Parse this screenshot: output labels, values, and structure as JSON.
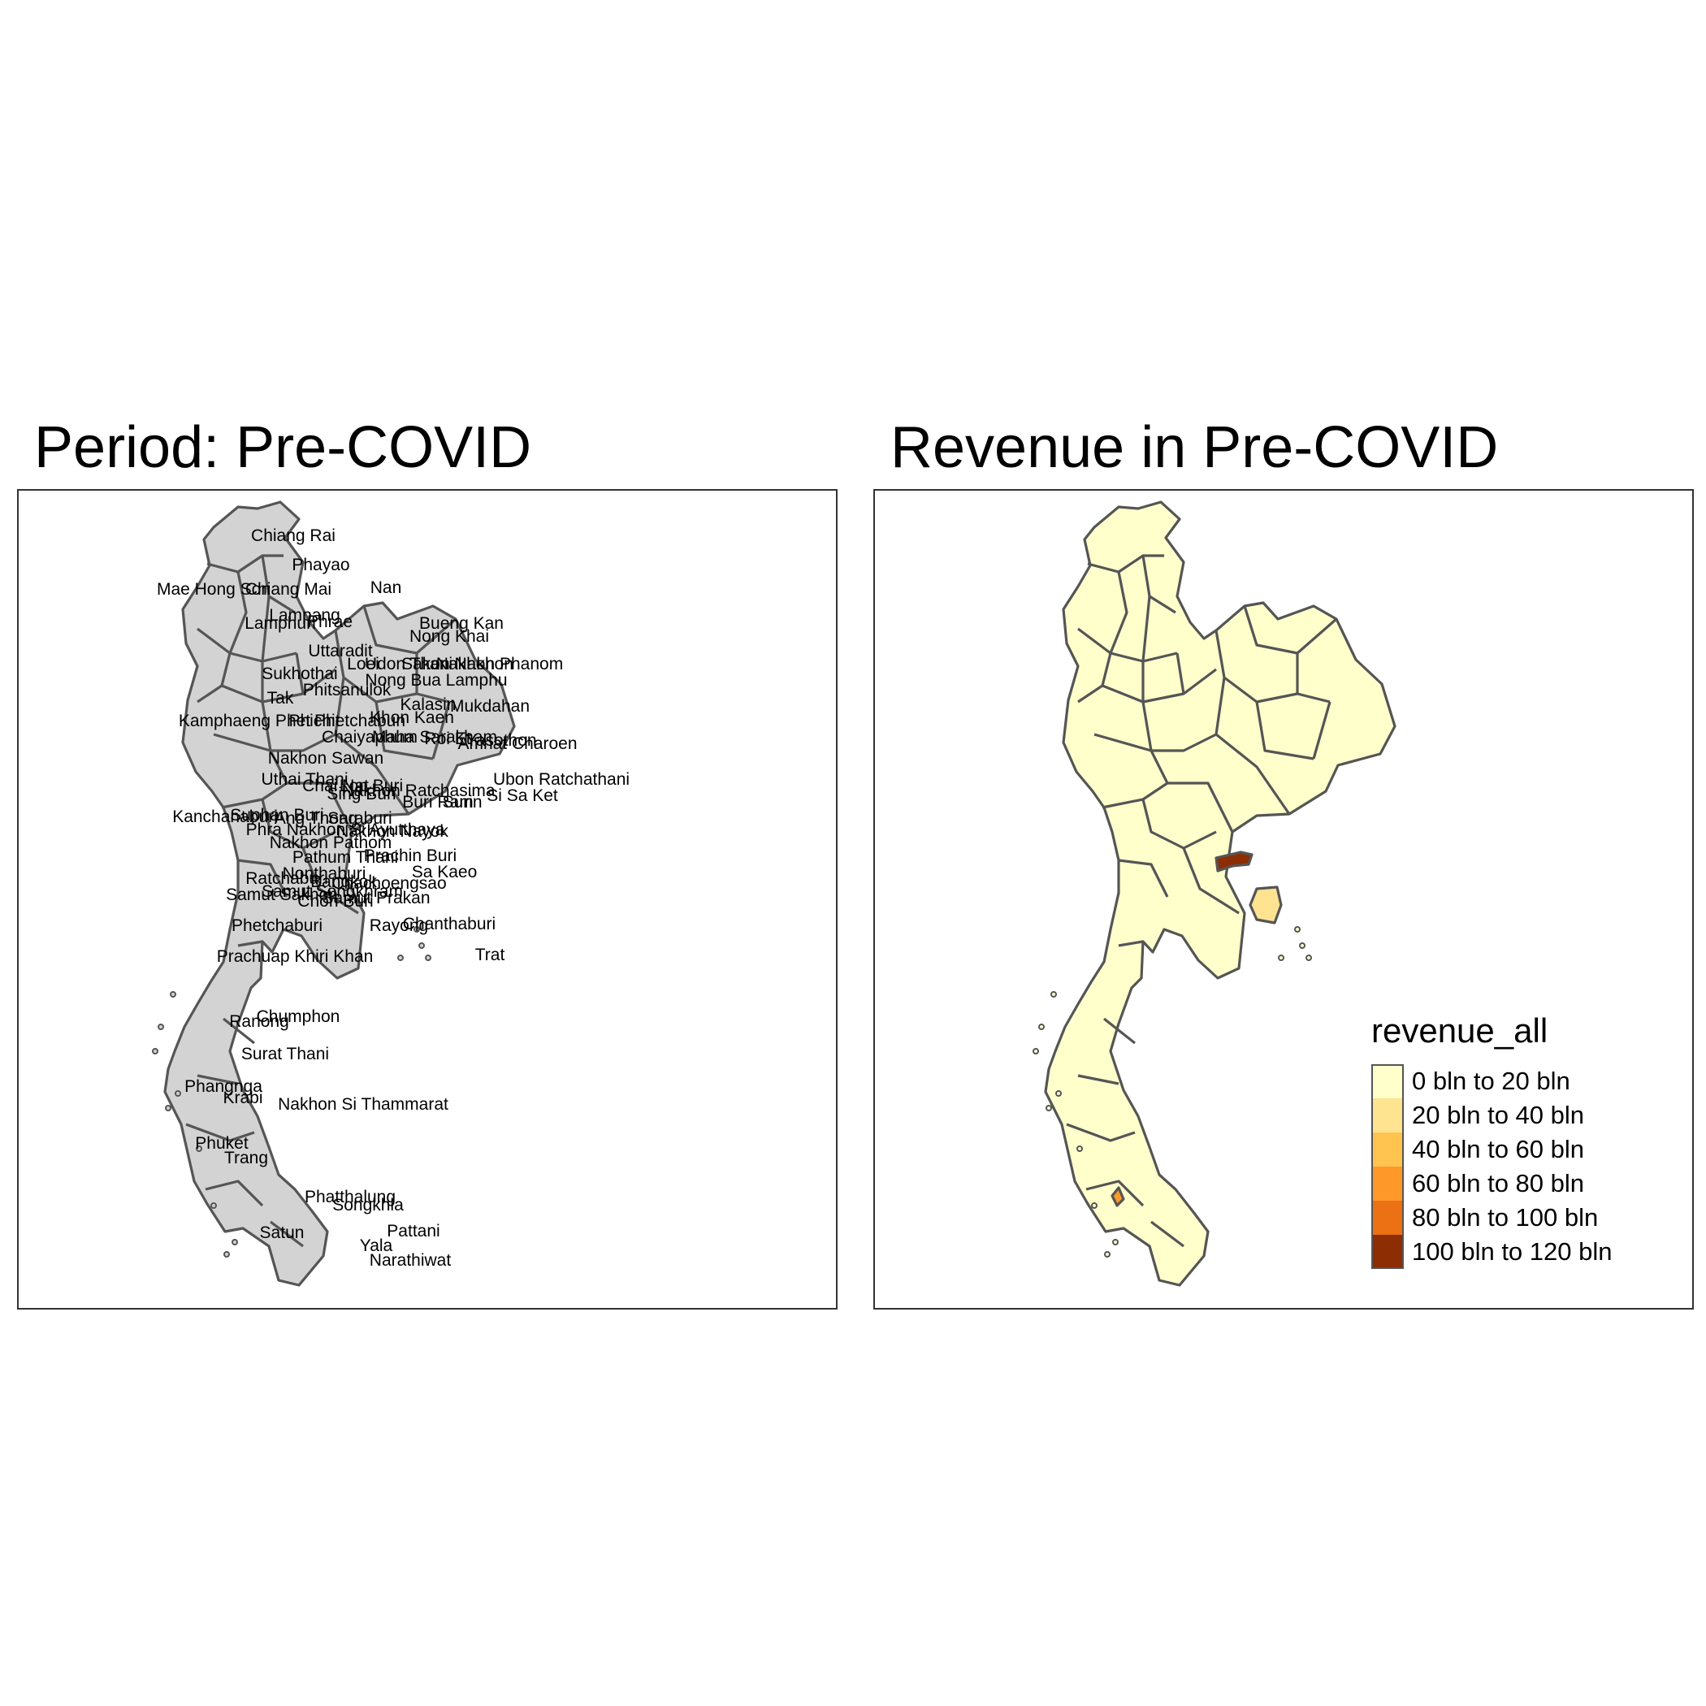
{
  "panels": {
    "left": {
      "title": "Period: Pre-COVID"
    },
    "right": {
      "title": "Revenue in Pre-COVID"
    }
  },
  "colors": {
    "province_fill_left": "#d3d3d3",
    "province_border": "#555555",
    "frame_border": "#333333"
  },
  "province_labels": [
    "Chiang Rai",
    "Phayao",
    "Nan",
    "Mae Hong Son",
    "Chiang Mai",
    "Lampang",
    "Lamphun",
    "Phrae",
    "Bueng Kan",
    "Nong Khai",
    "Uttaradit",
    "Loei",
    "Udon Thani",
    "Sakon Nakhon",
    "Nakhon Phanom",
    "Sukhothai",
    "Nong Bua Lamphu",
    "Phitsanulok",
    "Tak",
    "Kalasin",
    "Mukdahan",
    "Kamphaeng Phet",
    "Phichit",
    "Phetchabun",
    "Khon Kaen",
    "Chaiyaphum",
    "Maha Sarakham",
    "Roi Et",
    "Yasothon",
    "Amnat Charoen",
    "Nakhon Sawan",
    "Uthai Thani",
    "Ubon Ratchathani",
    "Chai Nat",
    "Lop Buri",
    "Nakhon Ratchasima",
    "Buri Ram",
    "Surin",
    "Si Sa Ket",
    "Sing Buri",
    "Kanchanaburi",
    "Suphan Buri",
    "Ang Thong",
    "Saraburi",
    "Phra Nakhon Si Ayutthaya",
    "Nakhon Nayok",
    "Nakhon Pathom",
    "Pathum Thani",
    "Prachin Buri",
    "Sa Kaeo",
    "Ratchaburi",
    "Bangkok",
    "Nonthaburi",
    "Chachoengsao",
    "Samut Songkhram",
    "Samut Sakhon",
    "Samut Prakan",
    "Chon Buri",
    "Phetchaburi",
    "Rayong",
    "Chanthaburi",
    "Trat",
    "Prachuap Khiri Khan",
    "Chumphon",
    "Ranong",
    "Surat Thani",
    "Phangnga",
    "Krabi",
    "Nakhon Si Thammarat",
    "Phuket",
    "Trang",
    "Phatthalung",
    "Satun",
    "Songkhla",
    "Pattani",
    "Yala",
    "Narathiwat"
  ],
  "legend": {
    "title": "revenue_all",
    "items": [
      {
        "label": "0 bln to 20 bln",
        "color": "#ffffcc"
      },
      {
        "label": "20 bln to 40 bln",
        "color": "#fee391"
      },
      {
        "label": "40 bln to 60 bln",
        "color": "#fec44f"
      },
      {
        "label": "60 bln to 80 bln",
        "color": "#fe9929"
      },
      {
        "label": "80 bln to 100 bln",
        "color": "#ec7014"
      },
      {
        "label": "100 bln to 120 bln",
        "color": "#8c2d04"
      }
    ]
  }
}
